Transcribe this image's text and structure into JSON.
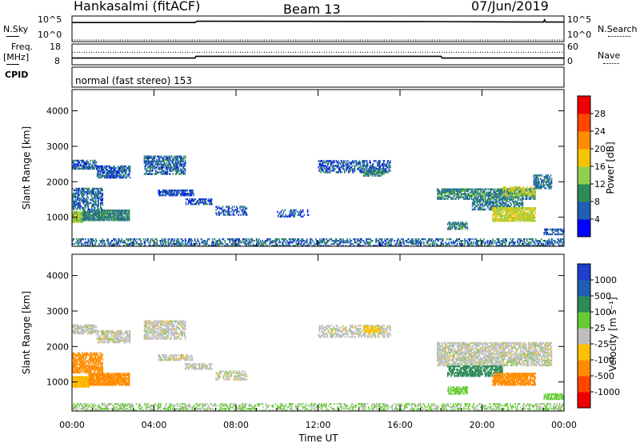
{
  "header": {
    "station": "Hankasalmi (fitACF)",
    "beam": "Beam 13",
    "date": "07/Jun/2019"
  },
  "top_panels": {
    "nsky_label": "N.Sky",
    "nsearch_label": "N.Search",
    "noise_ticks": [
      "10^5",
      "10^0"
    ],
    "freq_label": "Freq.",
    "freq_unit": "[MHz]",
    "freq_ticks": [
      "18",
      "8"
    ],
    "nave_label": "Nave",
    "nave_ticks": [
      "60",
      "0"
    ],
    "cpid_label": "CPID",
    "cpid_text": "normal (fast stereo) 153"
  },
  "panels": {
    "ylabel": "Slant Range [km]",
    "yticks": [
      "1000",
      "2000",
      "3000",
      "4000"
    ],
    "xlabel": "Time UT",
    "xticks": [
      "00:00",
      "04:00",
      "08:00",
      "12:00",
      "16:00",
      "20:00",
      "00:00"
    ]
  },
  "power_scale": {
    "title": "Power [dB]",
    "ticks": [
      "4",
      "8",
      "12",
      "16",
      "20",
      "24",
      "28"
    ],
    "colors": [
      "#0000ff",
      "#1e5fb4",
      "#2e8b57",
      "#8fd14f",
      "#f5c400",
      "#ff8c00",
      "#ff4500",
      "#ee0000"
    ]
  },
  "velocity_scale": {
    "title": "Velocity [m s⁻¹]",
    "ticks": [
      "1000",
      "500",
      "100",
      "25",
      "-25",
      "-100",
      "-500",
      "-1000"
    ],
    "colors": [
      "#1c3fd0",
      "#1e5fb4",
      "#2e8b57",
      "#66cc33",
      "#bebebe",
      "#ffc000",
      "#ff8c00",
      "#ff4500",
      "#ee0000"
    ]
  },
  "chart_data": [
    {
      "type": "line",
      "name": "noise",
      "x_range": [
        0,
        24
      ],
      "ylim_log10": [
        0,
        5
      ],
      "series": [
        {
          "name": "N.Sky",
          "x": [
            0,
            0.05,
            6,
            6.1,
            18,
            23,
            23.05,
            23.1,
            24
          ],
          "log10_values": [
            3.9,
            3.9,
            3.9,
            4.2,
            4.1,
            4.0,
            4.5,
            4.0,
            4.0
          ]
        },
        {
          "name": "N.Search",
          "x": [
            0,
            24
          ],
          "log10_values": [
            0,
            0
          ]
        }
      ]
    },
    {
      "type": "line",
      "name": "frequency_nave",
      "x_range": [
        0,
        24
      ],
      "series": [
        {
          "name": "Freq. [MHz]",
          "ylim": [
            8,
            18
          ],
          "x": [
            0,
            6,
            6.05,
            18,
            18.05,
            24
          ],
          "values": [
            10.9,
            10.9,
            11.9,
            11.9,
            10.9,
            10.9
          ]
        },
        {
          "name": "Nave",
          "ylim": [
            0,
            60
          ],
          "x": [
            0,
            24
          ],
          "values": [
            37,
            37
          ]
        }
      ]
    },
    {
      "type": "heatmap",
      "name": "power",
      "x_unit": "hours UT",
      "y_unit": "km",
      "xlim": [
        0,
        24
      ],
      "ylim": [
        180,
        4600
      ],
      "clim": [
        0,
        30
      ],
      "regions": [
        {
          "x": [
            0.0,
            0.5
          ],
          "y": [
            850,
            1150
          ],
          "mag": 14,
          "density": 0.9
        },
        {
          "x": [
            0.5,
            2.8
          ],
          "y": [
            900,
            1200
          ],
          "mag": 9,
          "density": 0.8
        },
        {
          "x": [
            0.0,
            1.5
          ],
          "y": [
            1200,
            1800
          ],
          "mag": 7,
          "density": 0.5
        },
        {
          "x": [
            0.0,
            1.2
          ],
          "y": [
            2350,
            2600
          ],
          "mag": 6,
          "density": 0.5
        },
        {
          "x": [
            1.2,
            2.8
          ],
          "y": [
            2100,
            2450
          ],
          "mag": 6,
          "density": 0.55
        },
        {
          "x": [
            3.5,
            5.5
          ],
          "y": [
            2200,
            2700
          ],
          "mag": 7,
          "density": 0.5
        },
        {
          "x": [
            4.2,
            5.9
          ],
          "y": [
            1600,
            1750
          ],
          "mag": 5,
          "density": 0.6
        },
        {
          "x": [
            5.5,
            6.8
          ],
          "y": [
            1350,
            1500
          ],
          "mag": 5,
          "density": 0.5
        },
        {
          "x": [
            7.0,
            8.5
          ],
          "y": [
            1050,
            1300
          ],
          "mag": 5,
          "density": 0.35
        },
        {
          "x": [
            10.0,
            11.5
          ],
          "y": [
            1000,
            1200
          ],
          "mag": 5,
          "density": 0.3
        },
        {
          "x": [
            12.0,
            15.5
          ],
          "y": [
            2250,
            2600
          ],
          "mag": 6,
          "density": 0.4
        },
        {
          "x": [
            14.2,
            15.2
          ],
          "y": [
            2150,
            2350
          ],
          "mag": 9,
          "density": 0.5
        },
        {
          "x": [
            17.8,
            22.6
          ],
          "y": [
            1500,
            1800
          ],
          "mag": 9,
          "density": 0.6
        },
        {
          "x": [
            21.0,
            22.6
          ],
          "y": [
            1600,
            1850
          ],
          "mag": 15,
          "density": 0.5
        },
        {
          "x": [
            22.5,
            23.4
          ],
          "y": [
            1800,
            2200
          ],
          "mag": 8,
          "density": 0.45
        },
        {
          "x": [
            19.5,
            22.0
          ],
          "y": [
            1200,
            1500
          ],
          "mag": 8,
          "density": 0.45
        },
        {
          "x": [
            20.5,
            22.6
          ],
          "y": [
            880,
            1250
          ],
          "mag": 16,
          "density": 0.75
        },
        {
          "x": [
            18.3,
            19.3
          ],
          "y": [
            650,
            850
          ],
          "mag": 9,
          "density": 0.5
        },
        {
          "x": [
            23.0,
            24.0
          ],
          "y": [
            500,
            650
          ],
          "mag": 6,
          "density": 0.5
        },
        {
          "x": [
            0.0,
            24.0
          ],
          "y": [
            180,
            400
          ],
          "mag": 7,
          "density": 0.35
        }
      ]
    },
    {
      "type": "heatmap",
      "name": "velocity",
      "x_unit": "hours UT",
      "y_unit": "km",
      "xlim": [
        0,
        24
      ],
      "ylim": [
        180,
        4600
      ],
      "clim": [
        -1000,
        1000
      ],
      "regions": [
        {
          "x": [
            0.0,
            0.8
          ],
          "y": [
            850,
            1150
          ],
          "vel": -80,
          "density": 0.9
        },
        {
          "x": [
            0.8,
            2.8
          ],
          "y": [
            900,
            1250
          ],
          "vel": -350,
          "density": 0.8
        },
        {
          "x": [
            0.0,
            1.5
          ],
          "y": [
            1250,
            1800
          ],
          "vel": -450,
          "density": 0.55
        },
        {
          "x": [
            0.0,
            1.2
          ],
          "y": [
            2350,
            2600
          ],
          "vel": 0,
          "density": 0.55
        },
        {
          "x": [
            1.2,
            2.8
          ],
          "y": [
            2100,
            2450
          ],
          "vel": 0,
          "density": 0.55
        },
        {
          "x": [
            3.5,
            5.5
          ],
          "y": [
            2200,
            2700
          ],
          "vel": 0,
          "density": 0.5
        },
        {
          "x": [
            4.2,
            5.9
          ],
          "y": [
            1600,
            1750
          ],
          "vel": 0,
          "density": 0.55
        },
        {
          "x": [
            5.5,
            6.8
          ],
          "y": [
            1350,
            1500
          ],
          "vel": 0,
          "density": 0.5
        },
        {
          "x": [
            7.0,
            8.5
          ],
          "y": [
            1050,
            1300
          ],
          "vel": 0,
          "density": 0.35
        },
        {
          "x": [
            12.0,
            15.5
          ],
          "y": [
            2250,
            2600
          ],
          "vel": 0,
          "density": 0.4
        },
        {
          "x": [
            14.2,
            15.0
          ],
          "y": [
            2400,
            2550
          ],
          "vel": -60,
          "density": 0.5
        },
        {
          "x": [
            17.8,
            23.4
          ],
          "y": [
            1450,
            2100
          ],
          "vel": 0,
          "density": 0.55
        },
        {
          "x": [
            18.3,
            21.0
          ],
          "y": [
            1150,
            1450
          ],
          "vel": 150,
          "density": 0.55
        },
        {
          "x": [
            20.5,
            22.6
          ],
          "y": [
            900,
            1250
          ],
          "vel": -350,
          "density": 0.7
        },
        {
          "x": [
            18.3,
            19.3
          ],
          "y": [
            650,
            850
          ],
          "vel": 60,
          "density": 0.55
        },
        {
          "x": [
            23.0,
            24.0
          ],
          "y": [
            500,
            650
          ],
          "vel": 60,
          "density": 0.5
        },
        {
          "x": [
            0.0,
            24.0
          ],
          "y": [
            180,
            400
          ],
          "vel": 30,
          "density": 0.3
        }
      ]
    }
  ]
}
